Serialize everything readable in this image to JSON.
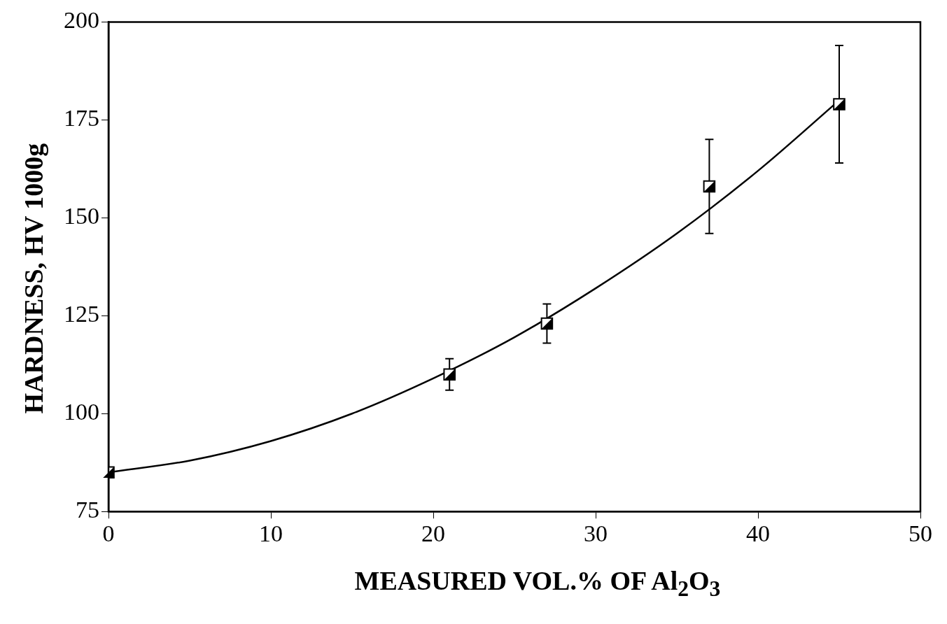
{
  "chart_data": {
    "type": "scatter",
    "xlabel": "MEASURED VOL.% OF Al$_{2}$O$_{3}$",
    "ylabel": "HARDNESS,  HV  1000g",
    "xlim": [
      0,
      50
    ],
    "xticks": [
      0,
      10,
      20,
      30,
      40,
      50
    ],
    "ylim": [
      75,
      200
    ],
    "yticks": [
      75,
      100,
      125,
      150,
      175,
      200
    ],
    "grid": false,
    "series": [
      {
        "marker": "square",
        "color": "#000000",
        "x": [
          0,
          21,
          27,
          37,
          45
        ],
        "values": [
          85,
          110,
          123,
          158,
          179
        ],
        "errors": [
          null,
          [
            106,
            114
          ],
          [
            118,
            128
          ],
          [
            146,
            170
          ],
          [
            164,
            194
          ]
        ]
      },
      {
        "type": "line",
        "marker": "none",
        "color": "#000000",
        "x": [
          0,
          5,
          10,
          15,
          20,
          25,
          30,
          35,
          40,
          45
        ],
        "values": [
          85,
          88,
          93,
          100,
          109,
          119.5,
          132,
          146,
          162,
          180
        ]
      }
    ]
  }
}
